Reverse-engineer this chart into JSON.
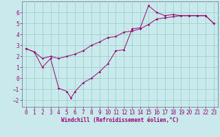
{
  "xlabel": "Windchill (Refroidissement éolien,°C)",
  "bg_color": "#c8eaea",
  "grid_color": "#9ecece",
  "line_color": "#990077",
  "spine_color": "#7a7a9a",
  "xlim": [
    -0.5,
    23.5
  ],
  "ylim": [
    -2.6,
    7.0
  ],
  "xticks": [
    0,
    1,
    2,
    3,
    4,
    5,
    6,
    7,
    8,
    9,
    10,
    11,
    12,
    13,
    14,
    15,
    16,
    17,
    18,
    19,
    20,
    21,
    22,
    23
  ],
  "yticks": [
    -2,
    -1,
    0,
    1,
    2,
    3,
    4,
    5,
    6
  ],
  "line1_x": [
    0,
    1,
    2,
    3,
    4,
    5,
    5.5,
    6,
    7,
    8,
    9,
    10,
    11,
    12,
    13,
    14,
    15,
    16,
    17,
    18,
    19,
    20,
    21,
    22,
    23
  ],
  "line1_y": [
    2.7,
    2.4,
    1.0,
    1.8,
    -0.9,
    -1.2,
    -1.8,
    -1.2,
    -0.4,
    -0.0,
    0.6,
    1.3,
    2.5,
    2.6,
    4.5,
    4.6,
    6.6,
    6.0,
    5.7,
    5.8,
    5.7,
    5.7,
    5.7,
    5.7,
    5.0
  ],
  "line2_x": [
    0,
    1,
    2,
    3,
    4,
    5,
    6,
    7,
    8,
    9,
    10,
    11,
    12,
    13,
    14,
    15,
    16,
    17,
    18,
    19,
    20,
    21,
    22,
    23
  ],
  "line2_y": [
    2.7,
    2.4,
    1.8,
    2.0,
    1.8,
    2.0,
    2.2,
    2.5,
    3.0,
    3.3,
    3.7,
    3.8,
    4.2,
    4.3,
    4.5,
    4.9,
    5.4,
    5.5,
    5.6,
    5.7,
    5.7,
    5.7,
    5.7,
    5.0
  ],
  "tick_fontsize": 5.5,
  "xlabel_fontsize": 5.5
}
